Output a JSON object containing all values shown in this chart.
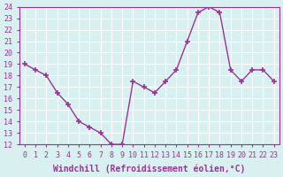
{
  "x": [
    0,
    1,
    2,
    3,
    4,
    5,
    6,
    7,
    8,
    9,
    10,
    11,
    12,
    13,
    14,
    15,
    16,
    17,
    18,
    19,
    20,
    21,
    22,
    23
  ],
  "y": [
    19,
    18.5,
    18,
    16.5,
    15.5,
    14,
    13.5,
    13,
    12,
    12,
    17.5,
    17,
    16.5,
    17.5,
    18.5,
    21,
    23.5,
    24,
    23.5,
    18.5,
    17.5,
    18.5,
    18.5,
    17.5
  ],
  "line_color": "#993399",
  "marker_color": "#993399",
  "bg_color": "#d9f0f0",
  "grid_color": "#ffffff",
  "xlabel": "Windchill (Refroidissement éolien,°C)",
  "ylim": [
    12,
    24
  ],
  "xlim_min": -0.5,
  "xlim_max": 23.5,
  "yticks": [
    12,
    13,
    14,
    15,
    16,
    17,
    18,
    19,
    20,
    21,
    22,
    23,
    24
  ],
  "xticks": [
    0,
    1,
    2,
    3,
    4,
    5,
    6,
    7,
    8,
    9,
    10,
    11,
    12,
    13,
    14,
    15,
    16,
    17,
    18,
    19,
    20,
    21,
    22,
    23
  ],
  "tick_label_size": 6,
  "xlabel_size": 7
}
